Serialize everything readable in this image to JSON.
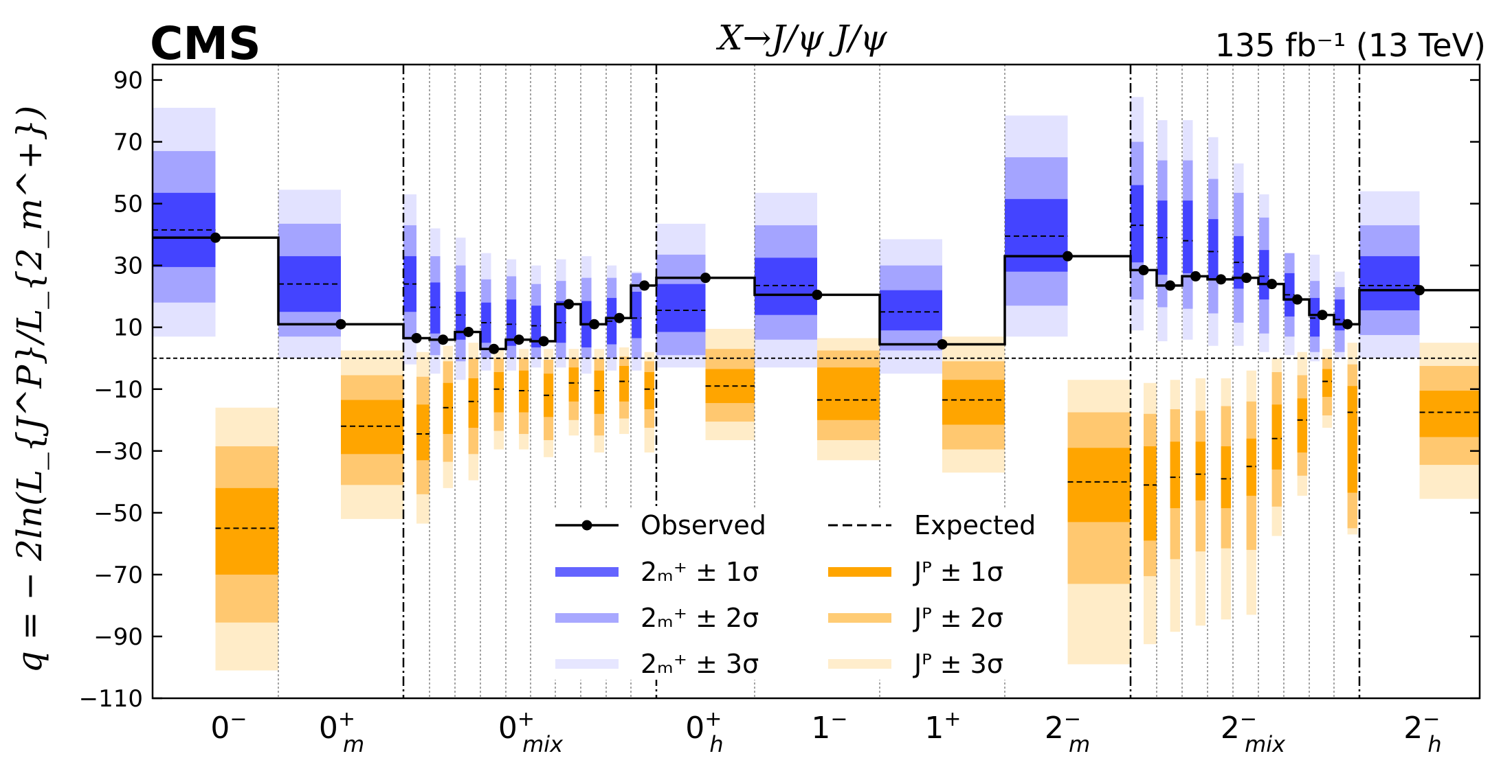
{
  "header": {
    "experiment": "CMS",
    "title": "X→J/ψ J/ψ",
    "luminosity": "135 fb⁻¹ (13 TeV)"
  },
  "colors": {
    "blue1": "#4444ff",
    "blue2": "#a4a4ff",
    "blue3": "#e2e2ff",
    "orange1": "#ffa500",
    "orange2": "#ffc870",
    "orange3": "#ffecc8",
    "legend_blue1": "#6464ff",
    "legend_blue2": "#a8a8ff",
    "legend_blue3": "#e6e6ff",
    "legend_orange1": "#ffa500",
    "legend_orange2": "#ffcc75",
    "legend_orange3": "#ffedcc"
  },
  "chart_data": {
    "type": "bar",
    "ylabel": "q = − 2ln(L_{J^P}/L_{2_m^+})",
    "ylim": [
      -110,
      95
    ],
    "yticks": [
      90,
      70,
      50,
      30,
      10,
      -10,
      -30,
      -50,
      -70,
      -90,
      -110
    ],
    "ytick_labels": [
      "90",
      "70",
      "50",
      "30",
      "10",
      "−10",
      "−30",
      "−50",
      "−70",
      "−90",
      "−110"
    ],
    "reference_line": 0,
    "categories": [
      {
        "base": "0",
        "sup": "−",
        "sub": ""
      },
      {
        "base": "0",
        "sup": "+",
        "sub": "m"
      },
      {
        "base": "0",
        "sup": "+",
        "sub": "mix"
      },
      {
        "base": "0",
        "sup": "+",
        "sub": "h"
      },
      {
        "base": "1",
        "sup": "−",
        "sub": ""
      },
      {
        "base": "1",
        "sup": "+",
        "sub": ""
      },
      {
        "base": "2",
        "sup": "−",
        "sub": "m"
      },
      {
        "base": "2",
        "sup": "−",
        "sub": "mix"
      },
      {
        "base": "2",
        "sup": "−",
        "sub": "h"
      }
    ],
    "groups": [
      {
        "category": "0−",
        "observed": 39,
        "blue": {
          "exp": 41.5,
          "s1": [
            29.5,
            53.5
          ],
          "s2": [
            18,
            67
          ],
          "s3": [
            7,
            81
          ]
        },
        "orange": {
          "exp": -55,
          "s1": [
            -70,
            -42
          ],
          "s2": [
            -85.5,
            -28.5
          ],
          "s3": [
            -101,
            -16
          ]
        }
      },
      {
        "category": "0+m",
        "observed": 11,
        "blue": {
          "exp": 24,
          "s1": [
            15,
            33
          ],
          "s2": [
            7,
            43.5
          ],
          "s3": [
            0,
            54.5
          ]
        },
        "orange": {
          "exp": -22,
          "s1": [
            -31,
            -13.5
          ],
          "s2": [
            -41,
            -5.5
          ],
          "s3": [
            -52,
            2.5
          ]
        }
      },
      {
        "category": "0+mix",
        "observed": 6.5,
        "blue": {
          "exp": 24,
          "s1": [
            15,
            33
          ],
          "s2": [
            6,
            43
          ],
          "s3": [
            -2,
            53
          ]
        },
        "orange": {
          "exp": -24.5,
          "s1": [
            -33,
            -15
          ],
          "s2": [
            -44,
            -6
          ],
          "s3": [
            -53.5,
            2
          ]
        }
      },
      {
        "category": "0+mix",
        "observed": 6,
        "blue": {
          "exp": 16.5,
          "s1": [
            8,
            24.5
          ],
          "s2": [
            1,
            33
          ],
          "s3": [
            -5,
            42
          ]
        },
        "orange": {
          "exp": -16,
          "s1": [
            -24.5,
            -8
          ],
          "s2": [
            -33.5,
            -1
          ],
          "s3": [
            -42,
            4
          ]
        }
      },
      {
        "category": "0+mix",
        "observed": 8.5,
        "blue": {
          "exp": 14,
          "s1": [
            6,
            21.5
          ],
          "s2": [
            -1,
            30
          ],
          "s3": [
            -7,
            39
          ]
        },
        "orange": {
          "exp": -14,
          "s1": [
            -22.5,
            -6.5
          ],
          "s2": [
            -31,
            0
          ],
          "s3": [
            -39.5,
            5
          ]
        }
      },
      {
        "category": "0+mix",
        "observed": 3,
        "blue": {
          "exp": 11.5,
          "s1": [
            5,
            18
          ],
          "s2": [
            0,
            25.5
          ],
          "s3": [
            -4,
            34
          ]
        },
        "orange": {
          "exp": -10,
          "s1": [
            -17.5,
            -4.5
          ],
          "s2": [
            -23.5,
            0
          ],
          "s3": [
            -29.5,
            3
          ]
        }
      },
      {
        "category": "0+mix",
        "observed": 6,
        "blue": {
          "exp": 11,
          "s1": [
            4,
            19
          ],
          "s2": [
            0,
            26.5
          ],
          "s3": [
            -4,
            32
          ]
        },
        "orange": {
          "exp": -10.5,
          "s1": [
            -17.5,
            -4
          ],
          "s2": [
            -24.5,
            0
          ],
          "s3": [
            -29.5,
            3
          ]
        }
      },
      {
        "category": "0+mix",
        "observed": 5.5,
        "blue": {
          "exp": 10.5,
          "s1": [
            3.5,
            17
          ],
          "s2": [
            0,
            24
          ],
          "s3": [
            -3,
            30
          ]
        },
        "orange": {
          "exp": -12,
          "s1": [
            -19,
            -5
          ],
          "s2": [
            -26.5,
            -0.5
          ],
          "s3": [
            -32,
            3
          ]
        }
      },
      {
        "category": "0+mix",
        "observed": 17.5,
        "blue": {
          "exp": 11.5,
          "s1": [
            5,
            18.5
          ],
          "s2": [
            0,
            25
          ],
          "s3": [
            -3,
            32
          ]
        },
        "orange": {
          "exp": -8,
          "s1": [
            -14,
            -3
          ],
          "s2": [
            -20,
            0
          ],
          "s3": [
            -25,
            3
          ]
        }
      },
      {
        "category": "0+mix",
        "observed": 11,
        "blue": {
          "exp": 11,
          "s1": [
            3.5,
            18.5
          ],
          "s2": [
            0,
            26
          ],
          "s3": [
            -5,
            33
          ]
        },
        "orange": {
          "exp": -10.5,
          "s1": [
            -18,
            -4
          ],
          "s2": [
            -25,
            0
          ],
          "s3": [
            -30.5,
            3
          ]
        }
      },
      {
        "category": "0+mix",
        "observed": 13,
        "blue": {
          "exp": 12,
          "s1": [
            4.5,
            19.5
          ],
          "s2": [
            0,
            26
          ],
          "s3": [
            -4,
            30
          ]
        },
        "orange": {
          "exp": -7.5,
          "s1": [
            -14,
            -2.5
          ],
          "s2": [
            -19.5,
            0.5
          ],
          "s3": [
            -24.5,
            3.5
          ]
        }
      },
      {
        "category": "0+mix",
        "observed": 23.5,
        "blue": {
          "exp": 13,
          "s1": [
            6.5,
            21.5
          ],
          "s2": [
            0,
            27.5
          ],
          "s3": [
            -4,
            28
          ]
        },
        "orange": {
          "exp": -10,
          "s1": [
            -16.5,
            -4.5
          ],
          "s2": [
            -22.5,
            -1
          ],
          "s3": [
            -30.5,
            2
          ]
        }
      },
      {
        "category": "0+h",
        "observed": 26,
        "blue": {
          "exp": 15.5,
          "s1": [
            8.5,
            24
          ],
          "s2": [
            1,
            33.5
          ],
          "s3": [
            -3,
            43.5
          ]
        },
        "orange": {
          "exp": -9,
          "s1": [
            -14.5,
            -3.5
          ],
          "s2": [
            -20.5,
            3
          ],
          "s3": [
            -26.5,
            9.5
          ]
        }
      },
      {
        "category": "1−",
        "observed": 20.5,
        "blue": {
          "exp": 23.5,
          "s1": [
            14,
            32.5
          ],
          "s2": [
            6,
            43
          ],
          "s3": [
            -3,
            53.5
          ]
        },
        "orange": {
          "exp": -13.5,
          "s1": [
            -20,
            -3
          ],
          "s2": [
            -26.5,
            2.5
          ],
          "s3": [
            -33,
            6.5
          ]
        }
      },
      {
        "category": "1+",
        "observed": 4.5,
        "blue": {
          "exp": 15,
          "s1": [
            9,
            22
          ],
          "s2": [
            2.5,
            30
          ],
          "s3": [
            -5,
            38.5
          ]
        },
        "orange": {
          "exp": -13.5,
          "s1": [
            -21.5,
            -7
          ],
          "s2": [
            -29.5,
            -1
          ],
          "s3": [
            -37,
            7
          ]
        }
      },
      {
        "category": "2−m",
        "observed": 33,
        "blue": {
          "exp": 39.5,
          "s1": [
            28,
            51.5
          ],
          "s2": [
            17,
            65
          ],
          "s3": [
            7,
            78.5
          ]
        },
        "orange": {
          "exp": -40,
          "s1": [
            -53,
            -29
          ],
          "s2": [
            -73,
            -17.5
          ],
          "s3": [
            -99,
            -7
          ]
        }
      },
      {
        "category": "2−mix",
        "observed": 28.5,
        "blue": {
          "exp": 43,
          "s1": [
            31,
            56
          ],
          "s2": [
            19,
            70
          ],
          "s3": [
            9,
            84.5
          ]
        },
        "orange": {
          "exp": -41,
          "s1": [
            -59,
            -28.5
          ],
          "s2": [
            -70.5,
            -18
          ],
          "s3": [
            -92.5,
            -8
          ]
        }
      },
      {
        "category": "2−mix",
        "observed": 23.5,
        "blue": {
          "exp": 39,
          "s1": [
            27,
            51
          ],
          "s2": [
            16.5,
            64
          ],
          "s3": [
            5.5,
            77
          ]
        },
        "orange": {
          "exp": -38.5,
          "s1": [
            -48.5,
            -27
          ],
          "s2": [
            -65,
            -16.5
          ],
          "s3": [
            -88.5,
            -7
          ]
        }
      },
      {
        "category": "2−mix",
        "observed": 26.5,
        "blue": {
          "exp": 38,
          "s1": [
            27.5,
            51
          ],
          "s2": [
            16,
            64
          ],
          "s3": [
            6,
            77
          ]
        },
        "orange": {
          "exp": -37.5,
          "s1": [
            -46,
            -27
          ],
          "s2": [
            -62.5,
            -17
          ],
          "s3": [
            -86.5,
            -6.5
          ]
        }
      },
      {
        "category": "2−mix",
        "observed": 25.5,
        "blue": {
          "exp": 34.5,
          "s1": [
            25.5,
            45
          ],
          "s2": [
            14.5,
            58
          ],
          "s3": [
            4,
            71.5
          ]
        },
        "orange": {
          "exp": -39,
          "s1": [
            -48.5,
            -28.5
          ],
          "s2": [
            -61.5,
            -15.5
          ],
          "s3": [
            -84.5,
            -6.5
          ]
        }
      },
      {
        "category": "2−mix",
        "observed": 26,
        "blue": {
          "exp": 31,
          "s1": [
            22.5,
            39.5
          ],
          "s2": [
            11.5,
            53.5
          ],
          "s3": [
            4,
            63
          ]
        },
        "orange": {
          "exp": -35,
          "s1": [
            -44.5,
            -26
          ],
          "s2": [
            -62,
            -14
          ],
          "s3": [
            -83,
            -4
          ]
        }
      },
      {
        "category": "2−mix",
        "observed": 24,
        "blue": {
          "exp": 26.5,
          "s1": [
            19,
            35
          ],
          "s2": [
            8,
            45.5
          ],
          "s3": [
            2,
            53
          ]
        },
        "orange": {
          "exp": -26,
          "s1": [
            -36,
            -15
          ],
          "s2": [
            -48,
            -4.5
          ],
          "s3": [
            -57.5,
            0
          ]
        }
      },
      {
        "category": "2−mix",
        "observed": 19,
        "blue": {
          "exp": 20.5,
          "s1": [
            13.5,
            27.5
          ],
          "s2": [
            7,
            34
          ],
          "s3": [
            1,
            33
          ]
        },
        "orange": {
          "exp": -20,
          "s1": [
            -30.5,
            -13
          ],
          "s2": [
            -38,
            -5.5
          ],
          "s3": [
            -44.5,
            2
          ]
        }
      },
      {
        "category": "2−mix",
        "observed": 14,
        "blue": {
          "exp": 13,
          "s1": [
            7,
            19.5
          ],
          "s2": [
            2,
            25
          ],
          "s3": [
            -1,
            33.5
          ]
        },
        "orange": {
          "exp": -7.5,
          "s1": [
            -12.5,
            -3.5
          ],
          "s2": [
            -18.5,
            0
          ],
          "s3": [
            -22.5,
            3
          ]
        }
      },
      {
        "category": "2−mix",
        "observed": 11,
        "blue": {
          "exp": 12.5,
          "s1": [
            9,
            19
          ],
          "s2": [
            2,
            23
          ],
          "s3": [
            0,
            28
          ]
        },
        "orange": {
          "exp": -17.5,
          "s1": [
            -43.5,
            -9
          ],
          "s2": [
            -55,
            -2
          ],
          "s3": [
            -57,
            5
          ]
        }
      },
      {
        "category": "2−h",
        "observed": 22,
        "blue": {
          "exp": 23.5,
          "s1": [
            15.5,
            33
          ],
          "s2": [
            7.5,
            43
          ],
          "s3": [
            0,
            54
          ]
        },
        "orange": {
          "exp": -17.5,
          "s1": [
            -25.5,
            -10.5
          ],
          "s2": [
            -34.5,
            -2.5
          ],
          "s3": [
            -45.5,
            5
          ]
        }
      }
    ],
    "legend": [
      {
        "key": "observed",
        "text": "Observed"
      },
      {
        "key": "expected",
        "text": "Expected"
      },
      {
        "key": "blue1",
        "text": "2ₘ⁺ ± 1σ"
      },
      {
        "key": "orange1",
        "text": "Jᴾ ± 1σ"
      },
      {
        "key": "blue2",
        "text": "2ₘ⁺ ± 2σ"
      },
      {
        "key": "orange2",
        "text": "Jᴾ ± 2σ"
      },
      {
        "key": "blue3",
        "text": "2ₘ⁺ ± 3σ"
      },
      {
        "key": "orange3",
        "text": "Jᴾ ± 3σ"
      }
    ],
    "legend_placement": "bottom-center"
  }
}
